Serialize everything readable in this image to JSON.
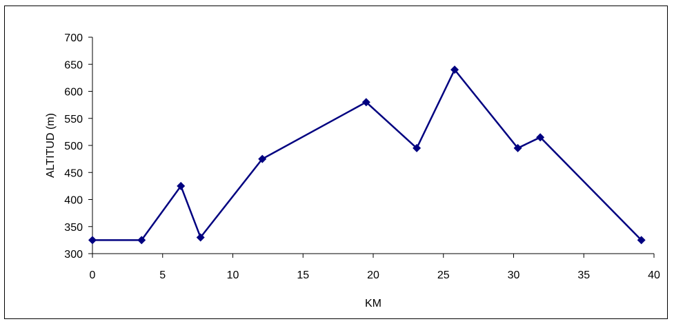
{
  "chart_data": {
    "type": "line",
    "title": "",
    "xlabel": "KM",
    "ylabel": "ALTITUD (m)",
    "xlim": [
      0,
      40
    ],
    "ylim": [
      300,
      700
    ],
    "x_ticks": [
      "0",
      "5",
      "10",
      "15",
      "20",
      "25",
      "30",
      "35",
      "40"
    ],
    "y_ticks": [
      "300",
      "350",
      "400",
      "450",
      "500",
      "550",
      "600",
      "650",
      "700"
    ],
    "grid": false,
    "legend": "none",
    "series": [
      {
        "x": [
          0,
          3.5,
          6.3,
          7.7,
          12.1,
          19.5,
          23.1,
          25.8,
          30.3,
          31.9,
          39.1
        ],
        "y": [
          325,
          325,
          425,
          330,
          475,
          580,
          495,
          640,
          495,
          515,
          325
        ],
        "color": "#000080",
        "marker": "diamond"
      }
    ]
  }
}
